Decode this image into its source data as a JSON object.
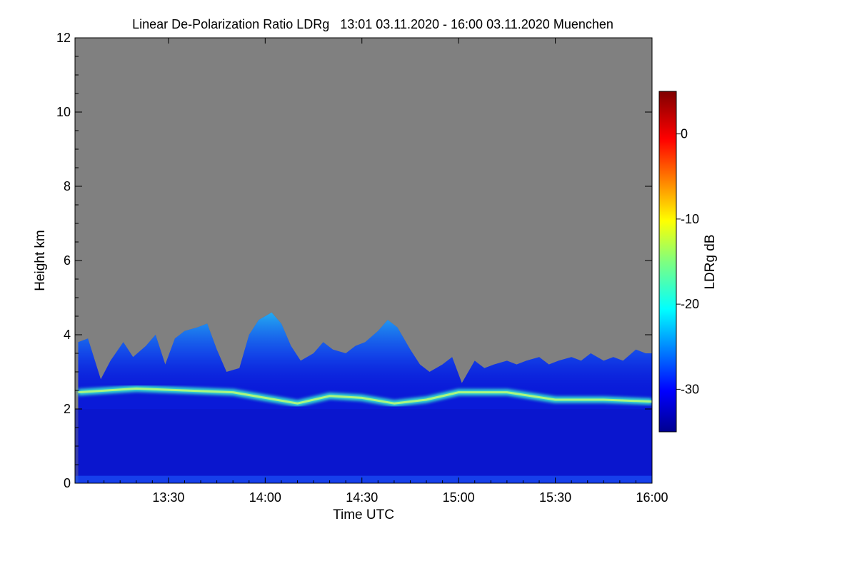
{
  "chart_data": {
    "type": "heatmap",
    "title": "Linear De-Polarization Ratio LDRg   13:01 03.11.2020 - 16:00 03.11.2020 Muenchen",
    "xlabel": "Time UTC",
    "ylabel": "Height km",
    "x_range": [
      "13:01",
      "16:00"
    ],
    "xlim_minutes_utc": [
      781,
      960
    ],
    "x_ticks": [
      {
        "label": "13:30",
        "minute": 810
      },
      {
        "label": "14:00",
        "minute": 840
      },
      {
        "label": "14:30",
        "minute": 870
      },
      {
        "label": "15:00",
        "minute": 900
      },
      {
        "label": "15:30",
        "minute": 930
      },
      {
        "label": "16:00",
        "minute": 960
      }
    ],
    "ylim": [
      0,
      12
    ],
    "y_ticks": [
      0,
      2,
      4,
      6,
      8,
      10,
      12
    ],
    "colorbar": {
      "label": "LDRg dB",
      "range": [
        -35,
        5
      ],
      "ticks": [
        0,
        -10,
        -20,
        -30
      ],
      "colormap": "jet",
      "no_signal_color": "#808080"
    },
    "cloud_top_km": [
      {
        "t": 782,
        "top": 3.8
      },
      {
        "t": 785,
        "top": 3.9
      },
      {
        "t": 789,
        "top": 2.8
      },
      {
        "t": 792,
        "top": 3.3
      },
      {
        "t": 796,
        "top": 3.8
      },
      {
        "t": 799,
        "top": 3.4
      },
      {
        "t": 803,
        "top": 3.7
      },
      {
        "t": 806,
        "top": 4.0
      },
      {
        "t": 809,
        "top": 3.2
      },
      {
        "t": 812,
        "top": 3.9
      },
      {
        "t": 815,
        "top": 4.1
      },
      {
        "t": 819,
        "top": 4.2
      },
      {
        "t": 822,
        "top": 4.3
      },
      {
        "t": 825,
        "top": 3.6
      },
      {
        "t": 828,
        "top": 3.0
      },
      {
        "t": 832,
        "top": 3.1
      },
      {
        "t": 835,
        "top": 4.0
      },
      {
        "t": 838,
        "top": 4.4
      },
      {
        "t": 842,
        "top": 4.6
      },
      {
        "t": 845,
        "top": 4.3
      },
      {
        "t": 848,
        "top": 3.7
      },
      {
        "t": 851,
        "top": 3.3
      },
      {
        "t": 855,
        "top": 3.5
      },
      {
        "t": 858,
        "top": 3.8
      },
      {
        "t": 861,
        "top": 3.6
      },
      {
        "t": 865,
        "top": 3.5
      },
      {
        "t": 868,
        "top": 3.7
      },
      {
        "t": 871,
        "top": 3.8
      },
      {
        "t": 875,
        "top": 4.1
      },
      {
        "t": 878,
        "top": 4.4
      },
      {
        "t": 881,
        "top": 4.2
      },
      {
        "t": 885,
        "top": 3.6
      },
      {
        "t": 888,
        "top": 3.2
      },
      {
        "t": 891,
        "top": 3.0
      },
      {
        "t": 895,
        "top": 3.2
      },
      {
        "t": 898,
        "top": 3.4
      },
      {
        "t": 901,
        "top": 2.7
      },
      {
        "t": 905,
        "top": 3.3
      },
      {
        "t": 908,
        "top": 3.1
      },
      {
        "t": 911,
        "top": 3.2
      },
      {
        "t": 915,
        "top": 3.3
      },
      {
        "t": 918,
        "top": 3.2
      },
      {
        "t": 921,
        "top": 3.3
      },
      {
        "t": 925,
        "top": 3.4
      },
      {
        "t": 928,
        "top": 3.2
      },
      {
        "t": 931,
        "top": 3.3
      },
      {
        "t": 935,
        "top": 3.4
      },
      {
        "t": 938,
        "top": 3.3
      },
      {
        "t": 941,
        "top": 3.5
      },
      {
        "t": 945,
        "top": 3.3
      },
      {
        "t": 948,
        "top": 3.4
      },
      {
        "t": 951,
        "top": 3.3
      },
      {
        "t": 955,
        "top": 3.6
      },
      {
        "t": 958,
        "top": 3.5
      },
      {
        "t": 960,
        "top": 3.5
      }
    ],
    "melting_layer_km": [
      {
        "t": 782,
        "h": 2.45
      },
      {
        "t": 800,
        "h": 2.55
      },
      {
        "t": 815,
        "h": 2.5
      },
      {
        "t": 830,
        "h": 2.45
      },
      {
        "t": 840,
        "h": 2.3
      },
      {
        "t": 850,
        "h": 2.15
      },
      {
        "t": 860,
        "h": 2.35
      },
      {
        "t": 870,
        "h": 2.3
      },
      {
        "t": 880,
        "h": 2.15
      },
      {
        "t": 890,
        "h": 2.25
      },
      {
        "t": 900,
        "h": 2.45
      },
      {
        "t": 915,
        "h": 2.45
      },
      {
        "t": 930,
        "h": 2.25
      },
      {
        "t": 945,
        "h": 2.25
      },
      {
        "t": 960,
        "h": 2.2
      }
    ]
  }
}
